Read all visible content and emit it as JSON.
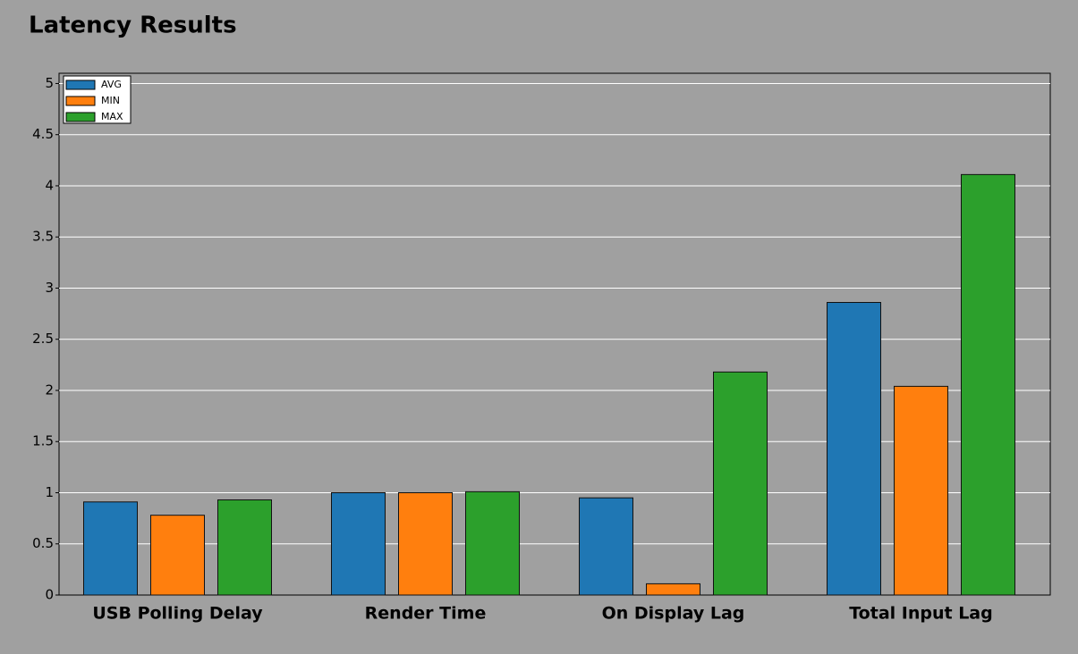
{
  "chart_data": {
    "type": "bar",
    "title": "Latency Results",
    "categories": [
      "USB Polling Delay",
      "Render Time",
      "On Display Lag",
      "Total Input Lag"
    ],
    "series": [
      {
        "name": "AVG",
        "color": "#1f77b4",
        "values": [
          0.91,
          1.0,
          0.95,
          2.86
        ]
      },
      {
        "name": "MIN",
        "color": "#ff7f0e",
        "values": [
          0.78,
          1.0,
          0.11,
          2.04
        ]
      },
      {
        "name": "MAX",
        "color": "#2ca02c",
        "values": [
          0.93,
          1.01,
          2.18,
          4.11
        ]
      }
    ],
    "ylim": [
      0,
      5.1
    ],
    "yticks": [
      0,
      0.5,
      1,
      1.5,
      2,
      2.5,
      3,
      3.5,
      4,
      4.5,
      5
    ],
    "grid": true,
    "legend": "top-left"
  }
}
